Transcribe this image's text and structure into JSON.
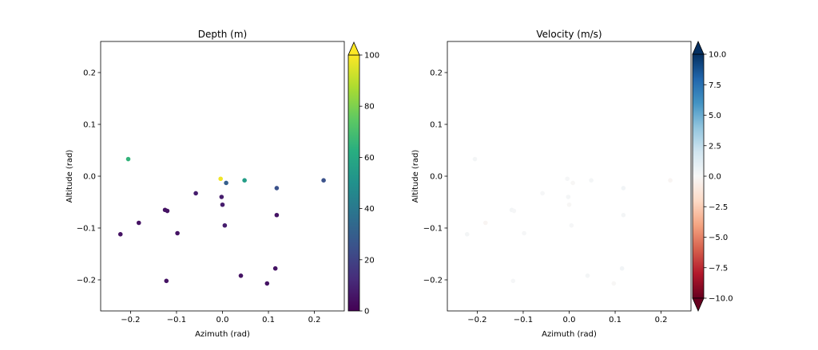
{
  "chart_data": [
    {
      "type": "scatter",
      "title": "Depth (m)",
      "xlabel": "Azimuth (rad)",
      "ylabel": "Altitude (rad)",
      "xlim": [
        -0.265,
        0.265
      ],
      "ylim": [
        -0.26,
        0.26
      ],
      "xticks": [
        -0.2,
        -0.1,
        0.0,
        0.1,
        0.2
      ],
      "xtick_labels": [
        "−0.2",
        "−0.1",
        "0.0",
        "0.1",
        "0.2"
      ],
      "yticks": [
        -0.2,
        -0.1,
        0.0,
        0.1,
        0.2
      ],
      "ytick_labels": [
        "−0.2",
        "−0.1",
        "0.0",
        "0.1",
        "0.2"
      ],
      "grid": false,
      "colormap": "viridis",
      "colorbar": {
        "range": [
          0,
          100
        ],
        "extend": "max",
        "ticks": [
          0,
          20,
          40,
          60,
          80,
          100
        ],
        "tick_labels": [
          "0",
          "20",
          "40",
          "60",
          "80",
          "100"
        ]
      },
      "points": [
        {
          "x": -0.205,
          "y": 0.033,
          "c": 65
        },
        {
          "x": -0.004,
          "y": -0.005,
          "c": 98
        },
        {
          "x": 0.008,
          "y": -0.013,
          "c": 30
        },
        {
          "x": 0.048,
          "y": -0.008,
          "c": 55
        },
        {
          "x": 0.118,
          "y": -0.023,
          "c": 25
        },
        {
          "x": 0.22,
          "y": -0.008,
          "c": 25
        },
        {
          "x": -0.058,
          "y": -0.033,
          "c": 8
        },
        {
          "x": -0.002,
          "y": -0.04,
          "c": 8
        },
        {
          "x": 0.0,
          "y": -0.055,
          "c": 8
        },
        {
          "x": -0.125,
          "y": -0.065,
          "c": 5
        },
        {
          "x": -0.12,
          "y": -0.067,
          "c": 5
        },
        {
          "x": 0.118,
          "y": -0.075,
          "c": 5
        },
        {
          "x": -0.182,
          "y": -0.09,
          "c": 5
        },
        {
          "x": 0.005,
          "y": -0.095,
          "c": 8
        },
        {
          "x": -0.222,
          "y": -0.112,
          "c": 5
        },
        {
          "x": -0.098,
          "y": -0.11,
          "c": 5
        },
        {
          "x": 0.115,
          "y": -0.178,
          "c": 5
        },
        {
          "x": 0.04,
          "y": -0.192,
          "c": 5
        },
        {
          "x": -0.122,
          "y": -0.202,
          "c": 5
        },
        {
          "x": 0.097,
          "y": -0.207,
          "c": 5
        }
      ]
    },
    {
      "type": "scatter",
      "title": "Velocity (m/s)",
      "xlabel": "Azimuth (rad)",
      "ylabel": "Altitude (rad)",
      "xlim": [
        -0.265,
        0.265
      ],
      "ylim": [
        -0.26,
        0.26
      ],
      "xticks": [
        -0.2,
        -0.1,
        0.0,
        0.1,
        0.2
      ],
      "xtick_labels": [
        "−0.2",
        "−0.1",
        "0.0",
        "0.1",
        "0.2"
      ],
      "yticks": [
        -0.2,
        -0.1,
        0.0,
        0.1,
        0.2
      ],
      "ytick_labels": [
        "−0.2",
        "−0.1",
        "0.0",
        "0.1",
        "0.2"
      ],
      "grid": false,
      "colormap": "RdBu",
      "colorbar": {
        "range": [
          -10,
          10
        ],
        "extend": "both",
        "ticks": [
          -10,
          -7.5,
          -5,
          -2.5,
          0,
          2.5,
          5,
          7.5,
          10
        ],
        "tick_labels": [
          "−10.0",
          "−7.5",
          "−5.0",
          "−2.5",
          "0.0",
          "2.5",
          "5.0",
          "7.5",
          "10.0"
        ]
      },
      "points": [
        {
          "x": -0.205,
          "y": 0.033,
          "c": 0.2
        },
        {
          "x": -0.004,
          "y": -0.005,
          "c": 0.1
        },
        {
          "x": 0.008,
          "y": -0.013,
          "c": -0.1
        },
        {
          "x": 0.048,
          "y": -0.008,
          "c": 0.2
        },
        {
          "x": 0.118,
          "y": -0.023,
          "c": 0.3
        },
        {
          "x": 0.22,
          "y": -0.008,
          "c": -0.2
        },
        {
          "x": -0.058,
          "y": -0.033,
          "c": 0.1
        },
        {
          "x": -0.002,
          "y": -0.04,
          "c": 0.2
        },
        {
          "x": 0.0,
          "y": -0.055,
          "c": -0.1
        },
        {
          "x": -0.125,
          "y": -0.065,
          "c": 0.2
        },
        {
          "x": -0.12,
          "y": -0.067,
          "c": 0.1
        },
        {
          "x": 0.118,
          "y": -0.075,
          "c": 0.2
        },
        {
          "x": -0.182,
          "y": -0.09,
          "c": -0.2
        },
        {
          "x": 0.005,
          "y": -0.095,
          "c": 0.1
        },
        {
          "x": -0.222,
          "y": -0.112,
          "c": 0.2
        },
        {
          "x": -0.098,
          "y": -0.11,
          "c": 0.1
        },
        {
          "x": 0.115,
          "y": -0.178,
          "c": 0.3
        },
        {
          "x": 0.04,
          "y": -0.192,
          "c": 0.2
        },
        {
          "x": -0.122,
          "y": -0.202,
          "c": 0.1
        },
        {
          "x": 0.097,
          "y": -0.207,
          "c": -0.1
        }
      ]
    }
  ]
}
